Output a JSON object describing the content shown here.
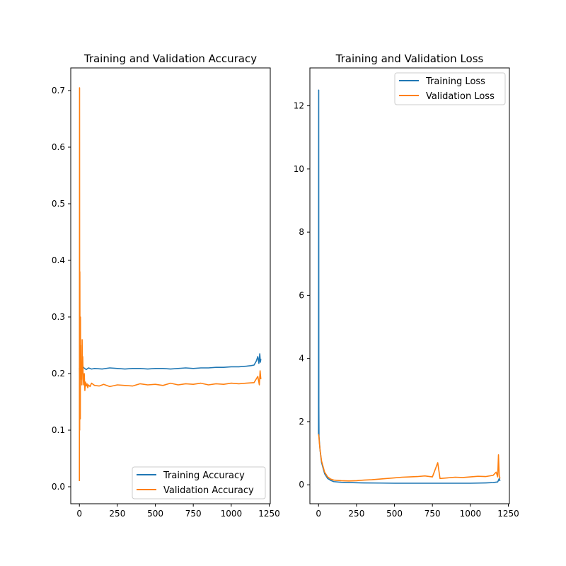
{
  "chart_data": [
    {
      "type": "line",
      "title": "Training and Validation Accuracy",
      "xlabel": "",
      "ylabel": "",
      "xlim": [
        -57,
        1257
      ],
      "ylim": [
        -0.03,
        0.74
      ],
      "x_ticks": [
        0,
        250,
        500,
        750,
        1000,
        1250
      ],
      "x_tick_labels": [
        "0",
        "250",
        "500",
        "750",
        "1000",
        "1250"
      ],
      "y_ticks": [
        0.0,
        0.1,
        0.2,
        0.3,
        0.4,
        0.5,
        0.6,
        0.7
      ],
      "y_tick_labels": [
        "0.0",
        "0.1",
        "0.2",
        "0.3",
        "0.4",
        "0.5",
        "0.6",
        "0.7"
      ],
      "grid": false,
      "legend_position": "lower-right",
      "series": [
        {
          "name": "Training Accuracy",
          "color": "#1f77b4",
          "x": [
            0,
            2,
            5,
            10,
            15,
            20,
            30,
            45,
            60,
            80,
            100,
            150,
            200,
            250,
            300,
            350,
            400,
            450,
            500,
            550,
            600,
            650,
            700,
            750,
            800,
            850,
            900,
            950,
            1000,
            1050,
            1100,
            1130,
            1150,
            1165,
            1175,
            1182,
            1188,
            1192,
            1195
          ],
          "y": [
            0.21,
            0.12,
            0.2,
            0.215,
            0.205,
            0.213,
            0.21,
            0.207,
            0.21,
            0.208,
            0.209,
            0.208,
            0.21,
            0.209,
            0.208,
            0.209,
            0.209,
            0.208,
            0.209,
            0.209,
            0.208,
            0.209,
            0.21,
            0.209,
            0.21,
            0.21,
            0.211,
            0.211,
            0.212,
            0.212,
            0.213,
            0.214,
            0.215,
            0.222,
            0.23,
            0.218,
            0.235,
            0.22,
            0.226
          ]
        },
        {
          "name": "Validation Accuracy",
          "color": "#ff7f0e",
          "x": [
            0,
            1,
            2,
            3,
            4,
            5,
            6,
            7,
            8,
            9,
            10,
            12,
            14,
            16,
            18,
            20,
            22,
            25,
            28,
            32,
            36,
            40,
            45,
            50,
            55,
            60,
            70,
            80,
            100,
            130,
            160,
            200,
            250,
            300,
            350,
            400,
            450,
            500,
            550,
            600,
            650,
            700,
            750,
            800,
            850,
            900,
            950,
            1000,
            1050,
            1100,
            1150,
            1175,
            1185,
            1190,
            1195
          ],
          "y": [
            0.01,
            0.705,
            0.1,
            0.38,
            0.18,
            0.29,
            0.12,
            0.3,
            0.21,
            0.25,
            0.19,
            0.2,
            0.22,
            0.18,
            0.26,
            0.2,
            0.23,
            0.19,
            0.18,
            0.2,
            0.17,
            0.185,
            0.178,
            0.182,
            0.175,
            0.18,
            0.177,
            0.183,
            0.179,
            0.178,
            0.181,
            0.177,
            0.18,
            0.179,
            0.178,
            0.182,
            0.18,
            0.181,
            0.179,
            0.183,
            0.18,
            0.182,
            0.181,
            0.183,
            0.18,
            0.182,
            0.181,
            0.183,
            0.182,
            0.183,
            0.184,
            0.195,
            0.18,
            0.205,
            0.19
          ]
        }
      ]
    },
    {
      "type": "line",
      "title": "Training and Validation Loss",
      "xlabel": "",
      "ylabel": "",
      "xlim": [
        -57,
        1257
      ],
      "ylim": [
        -0.6,
        13.2
      ],
      "x_ticks": [
        0,
        250,
        500,
        750,
        1000,
        1250
      ],
      "x_tick_labels": [
        "0",
        "250",
        "500",
        "750",
        "1000",
        "1250"
      ],
      "y_ticks": [
        0,
        2,
        4,
        6,
        8,
        10,
        12
      ],
      "y_tick_labels": [
        "0",
        "2",
        "4",
        "6",
        "8",
        "10",
        "12"
      ],
      "grid": false,
      "legend_position": "upper-right",
      "series": [
        {
          "name": "Training Loss",
          "color": "#1f77b4",
          "x": [
            0,
            1,
            2,
            3,
            5,
            10,
            20,
            40,
            60,
            80,
            100,
            150,
            200,
            250,
            300,
            400,
            500,
            600,
            700,
            800,
            900,
            1000,
            1100,
            1150,
            1180,
            1190,
            1195
          ],
          "y": [
            1.6,
            12.5,
            2.5,
            1.55,
            1.4,
            1.1,
            0.7,
            0.35,
            0.2,
            0.14,
            0.1,
            0.08,
            0.07,
            0.065,
            0.06,
            0.055,
            0.05,
            0.05,
            0.05,
            0.05,
            0.05,
            0.05,
            0.06,
            0.07,
            0.09,
            0.2,
            0.12
          ]
        },
        {
          "name": "Validation Loss",
          "color": "#ff7f0e",
          "x": [
            0,
            3,
            5,
            10,
            20,
            40,
            60,
            80,
            100,
            150,
            200,
            250,
            300,
            350,
            400,
            450,
            500,
            550,
            600,
            650,
            700,
            750,
            785,
            800,
            850,
            900,
            950,
            1000,
            1050,
            1100,
            1150,
            1170,
            1180,
            1185,
            1190,
            1195
          ],
          "y": [
            1.6,
            1.5,
            1.35,
            1.1,
            0.75,
            0.4,
            0.25,
            0.18,
            0.15,
            0.13,
            0.12,
            0.13,
            0.15,
            0.16,
            0.18,
            0.2,
            0.22,
            0.24,
            0.25,
            0.26,
            0.28,
            0.25,
            0.7,
            0.2,
            0.22,
            0.24,
            0.23,
            0.25,
            0.27,
            0.26,
            0.3,
            0.4,
            0.25,
            0.95,
            0.3,
            0.2
          ]
        }
      ]
    }
  ]
}
